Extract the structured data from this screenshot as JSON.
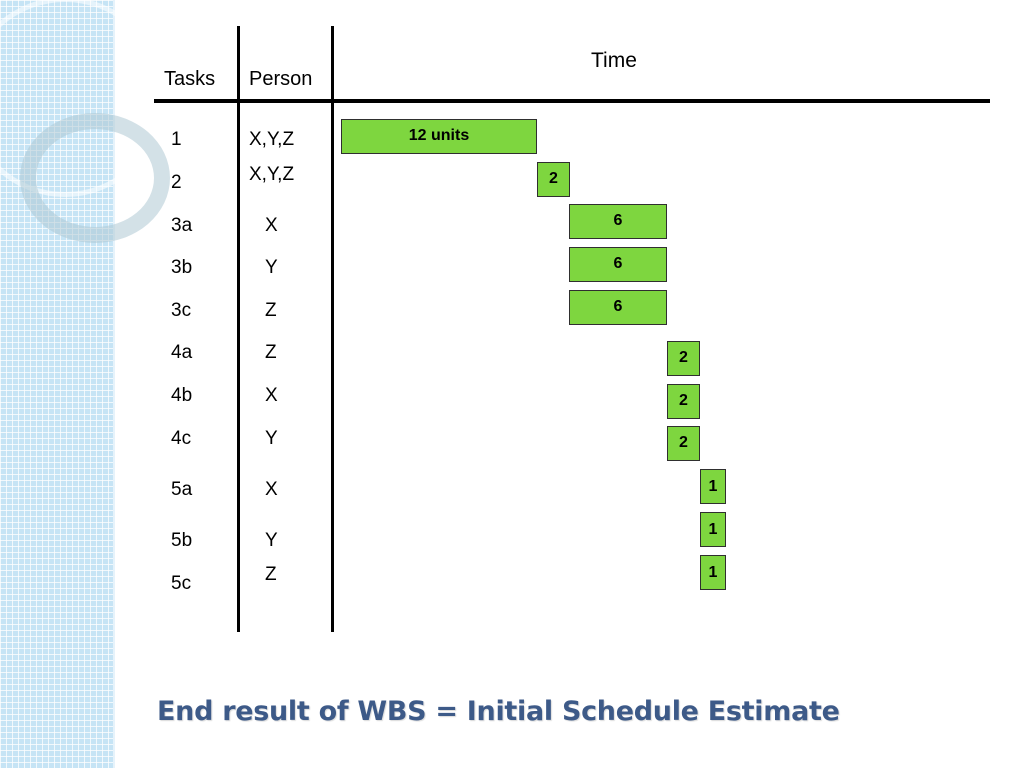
{
  "headers": {
    "tasks": "Tasks",
    "person": "Person",
    "time": "Time"
  },
  "rows": [
    {
      "task": "1",
      "person": "X,Y,Z",
      "duration": "12 units",
      "start": 0,
      "units": 12
    },
    {
      "task": "2",
      "person": "X,Y,Z",
      "duration": "2",
      "start": 12,
      "units": 2
    },
    {
      "task": "3a",
      "person": "X",
      "duration": "6",
      "start": 14,
      "units": 6
    },
    {
      "task": "3b",
      "person": "Y",
      "duration": "6",
      "start": 14,
      "units": 6
    },
    {
      "task": "3c",
      "person": "Z",
      "duration": "6",
      "start": 14,
      "units": 6
    },
    {
      "task": "4a",
      "person": "Z",
      "duration": "2",
      "start": 20,
      "units": 2
    },
    {
      "task": "4b",
      "person": "X",
      "duration": "2",
      "start": 20,
      "units": 2
    },
    {
      "task": "4c",
      "person": "Y",
      "duration": "2",
      "start": 20,
      "units": 2
    },
    {
      "task": "5a",
      "person": "X",
      "duration": "1",
      "start": 22,
      "units": 1
    },
    {
      "task": "5b",
      "person": "Y",
      "duration": "1",
      "start": 22,
      "units": 1
    },
    {
      "task": "5c",
      "person": "Z",
      "duration": "1",
      "start": 22,
      "units": 1
    }
  ],
  "footer": "End result of WBS = Initial Schedule Estimate",
  "colors": {
    "bar": "#7ed63f",
    "footer": "#3d5a88",
    "band": "#c6e4f5"
  }
}
